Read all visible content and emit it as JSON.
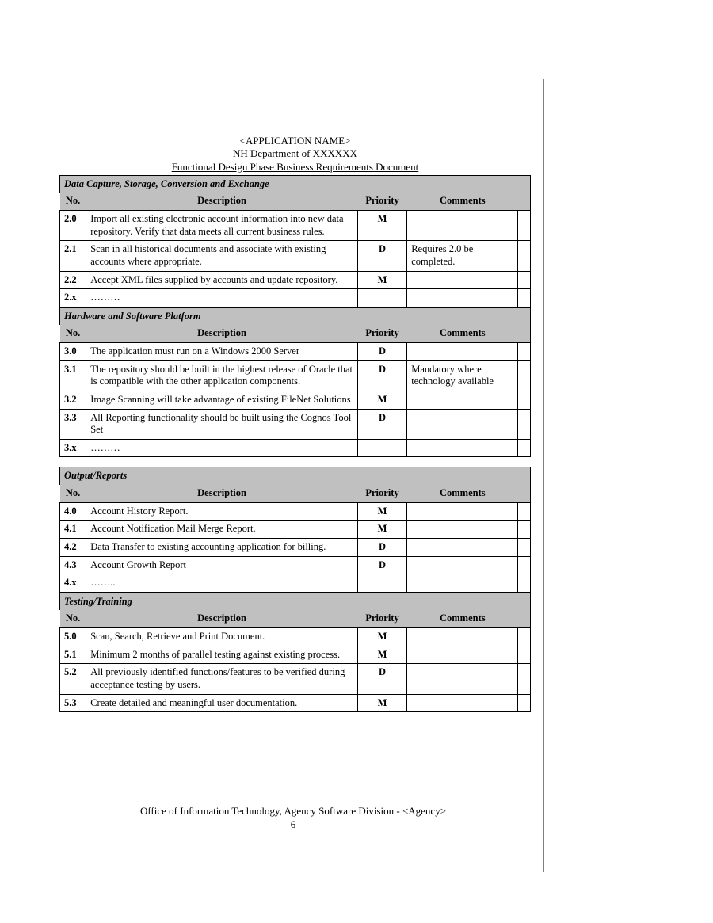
{
  "header": {
    "line1": "<APPLICATION NAME>",
    "line2": "NH Department of XXXXXX",
    "line3": "Functional Design Phase Business Requirements Document"
  },
  "columns": {
    "no": "No.",
    "description": "Description",
    "priority": "Priority",
    "comments": "Comments"
  },
  "sections": [
    {
      "title": "Data Capture, Storage, Conversion and Exchange",
      "rows": [
        {
          "no": "2.0",
          "desc": "Import all existing electronic account information into new data repository.  Verify that data meets all current business rules.",
          "pri": "M",
          "com": ""
        },
        {
          "no": "2.1",
          "desc": "Scan in all historical documents and associate with existing accounts where appropriate.",
          "pri": "D",
          "com": "Requires 2.0 be completed."
        },
        {
          "no": "2.2",
          "desc": "Accept XML files supplied by accounts and update repository.",
          "pri": "M",
          "com": ""
        },
        {
          "no": "2.x",
          "desc": "………",
          "pri": "",
          "com": ""
        }
      ]
    },
    {
      "title": "Hardware and Software Platform",
      "rows": [
        {
          "no": "3.0",
          "desc": "The application must run on a Windows 2000 Server",
          "pri": "D",
          "com": ""
        },
        {
          "no": "3.1",
          "desc": "The repository should be built in the highest release of Oracle that is compatible with the other application components.",
          "pri": "D",
          "com": "Mandatory where technology available"
        },
        {
          "no": "3.2",
          "desc": "Image Scanning will take advantage of existing FileNet Solutions",
          "pri": "M",
          "com": ""
        },
        {
          "no": "3.3",
          "desc": "All Reporting functionality should be built using the Cognos Tool Set",
          "pri": "D",
          "com": ""
        },
        {
          "no": "3.x",
          "desc": "………",
          "pri": "",
          "com": ""
        }
      ]
    },
    {
      "title": "Output/Reports",
      "rows": [
        {
          "no": "4.0",
          "desc": "Account History Report.",
          "pri": "M",
          "com": ""
        },
        {
          "no": "4.1",
          "desc": "Account Notification Mail Merge Report.",
          "pri": "M",
          "com": ""
        },
        {
          "no": "4.2",
          "desc": "Data Transfer to existing accounting application for billing.",
          "pri": "D",
          "com": ""
        },
        {
          "no": "4.3",
          "desc": "Account Growth Report",
          "pri": "D",
          "com": ""
        },
        {
          "no": "4.x",
          "desc": "……..",
          "pri": "",
          "com": ""
        }
      ]
    },
    {
      "title": "Testing/Training",
      "rows": [
        {
          "no": "5.0",
          "desc": "Scan, Search, Retrieve and Print Document.",
          "pri": "M",
          "com": ""
        },
        {
          "no": "5.1",
          "desc": "Minimum 2 months of parallel testing against existing process.",
          "pri": "M",
          "com": ""
        },
        {
          "no": "5.2",
          "desc": "All previously identified functions/features to be verified during acceptance testing by users.",
          "pri": "D",
          "com": ""
        },
        {
          "no": "5.3",
          "desc": "Create detailed and meaningful user documentation.",
          "pri": "M",
          "com": ""
        }
      ]
    }
  ],
  "footer": {
    "line1": "Office of Information Technology, Agency Software Division - <Agency>",
    "page_number": "6"
  },
  "colors": {
    "section_bg": "#c0c0c0",
    "border": "#000000",
    "text": "#000000"
  }
}
